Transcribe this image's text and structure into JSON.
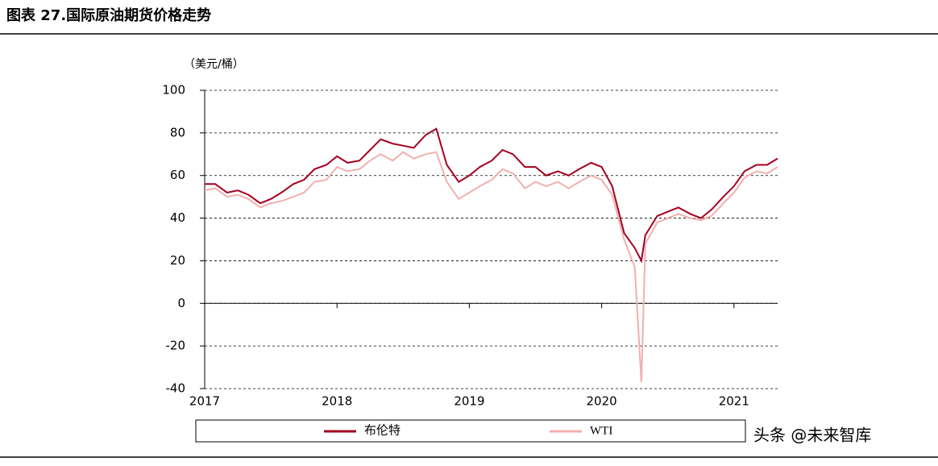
{
  "chart_data": {
    "type": "line",
    "title": "图表 27.国际原油期货价格走势",
    "y_unit_label": "（美元/桶）",
    "watermark": "头条 @未来智库",
    "x": [
      2017.0,
      2017.08,
      2017.17,
      2017.25,
      2017.33,
      2017.42,
      2017.5,
      2017.58,
      2017.67,
      2017.75,
      2017.83,
      2017.92,
      2018.0,
      2018.08,
      2018.17,
      2018.25,
      2018.33,
      2018.42,
      2018.5,
      2018.58,
      2018.67,
      2018.75,
      2018.83,
      2018.92,
      2019.0,
      2019.08,
      2019.17,
      2019.25,
      2019.33,
      2019.42,
      2019.5,
      2019.58,
      2019.67,
      2019.75,
      2019.83,
      2019.92,
      2020.0,
      2020.08,
      2020.17,
      2020.25,
      2020.3,
      2020.33,
      2020.42,
      2020.5,
      2020.58,
      2020.67,
      2020.75,
      2020.83,
      2020.92,
      2021.0,
      2021.08,
      2021.17,
      2021.25,
      2021.33
    ],
    "series": [
      {
        "name": "布伦特",
        "color": "#a50021",
        "values": [
          56,
          56,
          52,
          53,
          51,
          47,
          49,
          52,
          56,
          58,
          63,
          65,
          69,
          66,
          67,
          72,
          77,
          75,
          74,
          73,
          79,
          82,
          65,
          57,
          60,
          64,
          67,
          72,
          70,
          64,
          64,
          60,
          62,
          60,
          63,
          66,
          64,
          55,
          33,
          26,
          20,
          32,
          41,
          43,
          45,
          42,
          40,
          44,
          50,
          55,
          62,
          65,
          65,
          68
        ]
      },
      {
        "name": "WTI",
        "color": "#f0b0ae",
        "values": [
          53,
          54,
          50,
          51,
          49,
          45,
          47,
          48,
          50,
          52,
          57,
          58,
          64,
          62,
          63,
          67,
          70,
          67,
          71,
          68,
          70,
          71,
          57,
          49,
          52,
          55,
          58,
          63,
          61,
          54,
          57,
          55,
          57,
          54,
          57,
          60,
          58,
          51,
          30,
          17,
          -37,
          28,
          38,
          40,
          42,
          40,
          39,
          41,
          47,
          52,
          59,
          62,
          61,
          64
        ]
      }
    ],
    "xlim": [
      2017,
      2021.33
    ],
    "xticks": [
      2017,
      2018,
      2019,
      2020,
      2021
    ],
    "ylim": [
      -40,
      100
    ],
    "yticks": [
      -40,
      -20,
      0,
      20,
      40,
      60,
      80,
      100
    ],
    "grid": true
  }
}
